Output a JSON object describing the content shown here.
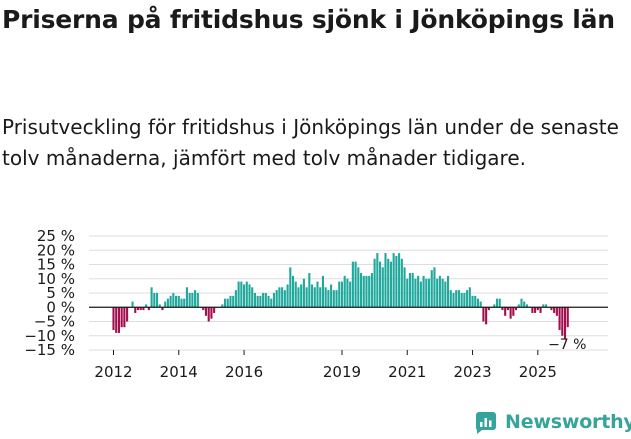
{
  "title": "Priserna på fritidshus sjönk i Jönköpings län",
  "subtitle": "Prisutveckling för fritidshus i Jönköpings län under de senaste tolv månaderna, jämfört med tolv månader tidigare.",
  "brand": {
    "name": "Newsworthy",
    "icon": "newsworthy-logo-icon",
    "color": "#36a49a"
  },
  "colors": {
    "positive": "#1fa89c",
    "negative": "#a10d4d",
    "zero_line": "#1a1a1a",
    "grid": "#dddddd"
  },
  "chart_data": {
    "type": "bar",
    "title": "Prisutveckling för fritidshus i Jönköpings län",
    "xlabel": "",
    "ylabel": "",
    "ylim": [
      -15,
      25
    ],
    "yticks": [
      25,
      20,
      15,
      10,
      5,
      0,
      -5,
      -10,
      -15
    ],
    "ytick_labels": [
      "25 %",
      "20 %",
      "15 %",
      "10 %",
      "5 %",
      "0 %",
      "−5 %",
      "−10 %",
      "−15 %"
    ],
    "x_start": "2012-01",
    "xticks": [
      {
        "label": "2012",
        "index": 0
      },
      {
        "label": "2014",
        "index": 24
      },
      {
        "label": "2016",
        "index": 48
      },
      {
        "label": "2019",
        "index": 84
      },
      {
        "label": "2021",
        "index": 108
      },
      {
        "label": "2023",
        "index": 132
      },
      {
        "label": "2025",
        "index": 156
      }
    ],
    "annotation": {
      "label": "−7 %",
      "index": 168,
      "value": -7
    },
    "values": [
      -8,
      -9,
      -9,
      -7,
      -7,
      -5,
      0,
      2,
      -2,
      -1,
      -1,
      -1,
      1,
      -1,
      7,
      5,
      5,
      1,
      -1,
      2,
      3,
      4,
      5,
      4,
      4,
      3,
      3,
      7,
      5,
      5,
      6,
      5,
      0,
      -1,
      -3,
      -5,
      -4,
      -2,
      0,
      0,
      1,
      3,
      3,
      4,
      4,
      6,
      9,
      9,
      8,
      9,
      8,
      7,
      5,
      4,
      4,
      5,
      5,
      4,
      3,
      5,
      6,
      7,
      7,
      6,
      8,
      14,
      11,
      9,
      7,
      8,
      10,
      7,
      12,
      8,
      7,
      9,
      7,
      11,
      7,
      6,
      8,
      6,
      6,
      9,
      9,
      11,
      10,
      9,
      16,
      16,
      14,
      12,
      11,
      11,
      11,
      12,
      17,
      19,
      16,
      14,
      19,
      17,
      16,
      19,
      18,
      19,
      17,
      14,
      10,
      12,
      12,
      10,
      11,
      9,
      11,
      10,
      10,
      13,
      14,
      10,
      11,
      10,
      9,
      11,
      6,
      5,
      6,
      6,
      5,
      5,
      6,
      7,
      4,
      4,
      3,
      2,
      -5,
      -6,
      -1,
      0,
      1,
      3,
      3,
      -1,
      -3,
      -1,
      -4,
      -3,
      -1,
      1,
      3,
      2,
      1,
      0,
      -2,
      -2,
      -1,
      -2,
      1,
      1,
      0,
      -1,
      -2,
      -3,
      -8,
      -10,
      -11,
      -7
    ]
  }
}
